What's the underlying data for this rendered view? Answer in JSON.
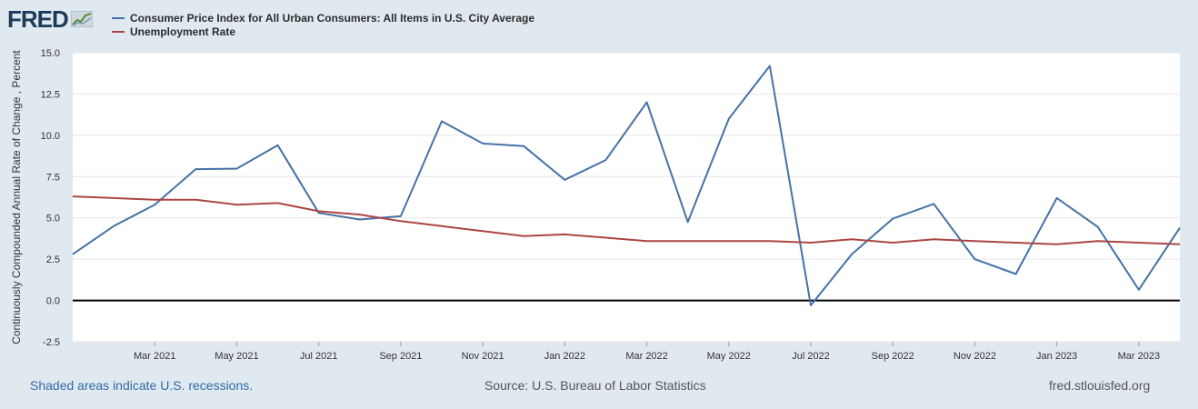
{
  "logo": {
    "text": "FRED"
  },
  "footer": {
    "recession_note": "Shaded areas indicate U.S. recessions.",
    "source": "Source: U.S. Bureau of Labor Statistics",
    "site": "fred.stlouisfed.org"
  },
  "chart_data": {
    "type": "line",
    "title": "",
    "ylabel": "Continuously Compounded Annual Rate of Change , Percent",
    "xlabel": "",
    "ylim": [
      -2.5,
      15.0
    ],
    "yticks": [
      15.0,
      12.5,
      10.0,
      7.5,
      5.0,
      2.5,
      0.0,
      -2.5
    ],
    "ytick_labels": [
      "15.0",
      "12.5",
      "10.0",
      "7.5",
      "5.0",
      "2.5",
      "0.0",
      "-2.5"
    ],
    "x_range": [
      "2021-01",
      "2023-04"
    ],
    "x": [
      "2021-01",
      "2021-02",
      "2021-03",
      "2021-04",
      "2021-05",
      "2021-06",
      "2021-07",
      "2021-08",
      "2021-09",
      "2021-10",
      "2021-11",
      "2021-12",
      "2022-01",
      "2022-02",
      "2022-03",
      "2022-04",
      "2022-05",
      "2022-06",
      "2022-07",
      "2022-08",
      "2022-09",
      "2022-10",
      "2022-11",
      "2022-12",
      "2023-01",
      "2023-02",
      "2023-03",
      "2023-04"
    ],
    "xticks": [
      {
        "x": "2021-03",
        "label": "Mar 2021"
      },
      {
        "x": "2021-05",
        "label": "May 2021"
      },
      {
        "x": "2021-07",
        "label": "Jul 2021"
      },
      {
        "x": "2021-09",
        "label": "Sep 2021"
      },
      {
        "x": "2021-11",
        "label": "Nov 2021"
      },
      {
        "x": "2022-01",
        "label": "Jan 2022"
      },
      {
        "x": "2022-03",
        "label": "Mar 2022"
      },
      {
        "x": "2022-05",
        "label": "May 2022"
      },
      {
        "x": "2022-07",
        "label": "Jul 2022"
      },
      {
        "x": "2022-09",
        "label": "Sep 2022"
      },
      {
        "x": "2022-11",
        "label": "Nov 2022"
      },
      {
        "x": "2023-01",
        "label": "Jan 2023"
      },
      {
        "x": "2023-03",
        "label": "Mar 2023"
      }
    ],
    "grid": "horizontal",
    "zero_line": true,
    "legend_position": "top-left",
    "series": [
      {
        "name": "Consumer Price Index for All Urban Consumers: All Items in U.S. City Average",
        "color": "#4572a7",
        "values": [
          2.8,
          4.5,
          5.8,
          7.95,
          7.98,
          9.4,
          5.3,
          4.9,
          5.1,
          10.85,
          9.5,
          9.35,
          7.3,
          8.5,
          12.0,
          4.75,
          11.0,
          14.2,
          -0.3,
          2.8,
          4.95,
          5.85,
          2.5,
          1.6,
          6.2,
          4.45,
          0.65,
          4.4
        ]
      },
      {
        "name": "Unemployment Rate",
        "color": "#aa4643",
        "values": [
          6.3,
          6.2,
          6.1,
          6.1,
          5.8,
          5.9,
          5.4,
          5.2,
          4.8,
          4.5,
          4.2,
          3.9,
          4.0,
          3.8,
          3.6,
          3.6,
          3.6,
          3.6,
          3.5,
          3.7,
          3.5,
          3.7,
          3.6,
          3.5,
          3.4,
          3.6,
          3.5,
          3.4
        ]
      }
    ]
  }
}
